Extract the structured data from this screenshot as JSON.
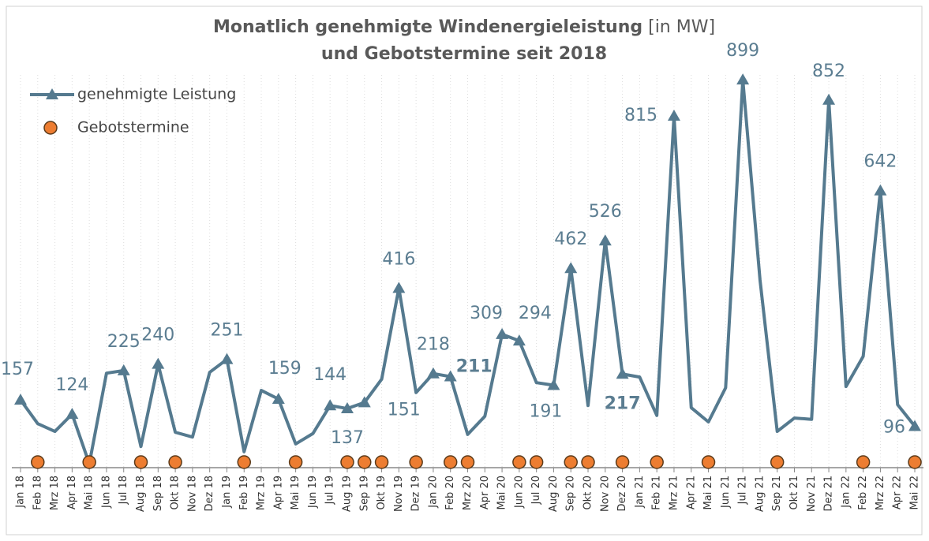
{
  "chart_data": {
    "type": "line",
    "title": "Monatlich genehmigte Windenergieleistung",
    "title_unit": "[in MW]",
    "subtitle": "und Gebotstermine seit 2018",
    "categories": [
      "Jan 18",
      "Feb 18",
      "Mrz 18",
      "Apr 18",
      "Mai 18",
      "Jun 18",
      "Jul 18",
      "Aug 18",
      "Sep 18",
      "Okt 18",
      "Nov 18",
      "Dez 18",
      "Jan 19",
      "Feb 19",
      "Mrz 19",
      "Apr 19",
      "Mai 19",
      "Jun 19",
      "Jul 19",
      "Aug 19",
      "Sep 19",
      "Okt 19",
      "Nov 19",
      "Dez 19",
      "Jan 20",
      "Feb 20",
      "Mrz 20",
      "Apr 20",
      "Mai 20",
      "Jun 20",
      "Jul 20",
      "Aug 20",
      "Sep 20",
      "Okt 20",
      "Nov 20",
      "Dez 20",
      "Jan 21",
      "Feb 21",
      "Mrz 21",
      "Apr 21",
      "Mai 21",
      "Jun 21",
      "Jul 21",
      "Aug 21",
      "Sep 21",
      "Okt 21",
      "Nov 21",
      "Dez 21",
      "Jan 22",
      "Feb 22",
      "Mrz 22",
      "Apr 22",
      "Mai 22"
    ],
    "series": [
      {
        "name": "genehmigte Leistung",
        "color": "#557a8f",
        "values": [
          157,
          102,
          84,
          124,
          9,
          219,
          225,
          49,
          240,
          82,
          71,
          221,
          251,
          37,
          179,
          159,
          55,
          79,
          144,
          137,
          151,
          205,
          416,
          174,
          218,
          211,
          77,
          119,
          309,
          294,
          197,
          191,
          462,
          144,
          526,
          217,
          210,
          121,
          815,
          139,
          106,
          185,
          899,
          435,
          84,
          115,
          112,
          852,
          188,
          258,
          642,
          146,
          96
        ],
        "value_labels": [
          "157",
          null,
          null,
          "124",
          null,
          null,
          "225",
          null,
          "240",
          null,
          null,
          null,
          "251",
          null,
          null,
          "159",
          null,
          null,
          "144",
          "137",
          "151",
          null,
          "416",
          null,
          "218",
          "211",
          null,
          null,
          "309",
          "294",
          null,
          "191",
          "462",
          null,
          "526",
          "217",
          null,
          null,
          "815",
          null,
          null,
          null,
          "899",
          null,
          null,
          null,
          null,
          "852",
          null,
          null,
          "642",
          null,
          "96"
        ]
      }
    ],
    "events": {
      "name": "Gebotstermine",
      "color": "#ed7d31",
      "categories": [
        "Feb 18",
        "Mai 18",
        "Aug 18",
        "Okt 18",
        "Feb 19",
        "Mai 19",
        "Aug 19",
        "Sep 19",
        "Okt 19",
        "Dez 19",
        "Feb 20",
        "Mrz 20",
        "Jun 20",
        "Jul 20",
        "Sep 20",
        "Okt 20",
        "Dez 20",
        "Feb 21",
        "Mai 21",
        "Sep 21",
        "Feb 22",
        "Mai 22"
      ]
    },
    "ylim": [
      0,
      1060
    ],
    "grid": true
  }
}
